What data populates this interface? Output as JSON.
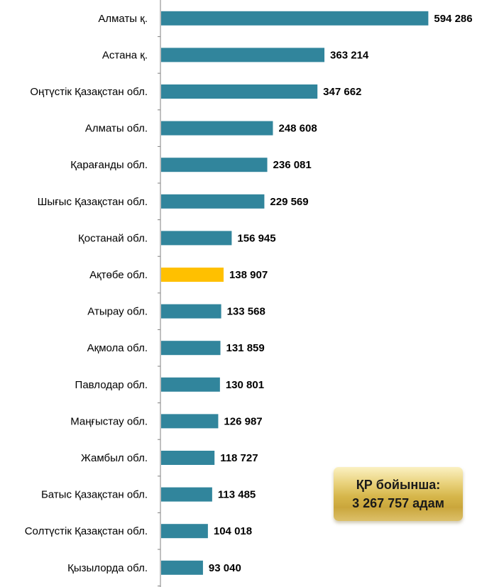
{
  "chart_data": {
    "type": "bar",
    "orientation": "horizontal",
    "categories": [
      "Алматы қ.",
      "Астана қ.",
      "Оңтүстік Қазақстан обл.",
      "Алматы обл.",
      "Қарағанды обл.",
      "Шығыс Қазақстан обл.",
      "Қостанай обл.",
      "Ақтөбе обл.",
      "Атырау обл.",
      "Ақмола обл.",
      "Павлодар обл.",
      "Маңғыстау обл.",
      "Жамбыл обл.",
      "Батыс Қазақстан обл.",
      "Солтүстік Қазақстан обл.",
      "Қызылорда обл."
    ],
    "values": [
      594286,
      363214,
      347662,
      248608,
      236081,
      229569,
      156945,
      138907,
      133568,
      131859,
      130801,
      126987,
      118727,
      113485,
      104018,
      93040
    ],
    "value_labels": [
      "594 286",
      "363 214",
      "347 662",
      "248 608",
      "236 081",
      "229 569",
      "156 945",
      "138 907",
      "133 568",
      "131 859",
      "130 801",
      "126 987",
      "118 727",
      "113 485",
      "104 018",
      "93 040"
    ],
    "highlight_category": "Ақтөбе обл.",
    "colors": {
      "bar": "#31859c",
      "highlight": "#ffc000",
      "axis": "#808080"
    },
    "xlim": [
      0,
      600000
    ],
    "grid": false,
    "title": "",
    "xlabel": "",
    "ylabel": ""
  },
  "total_box": {
    "line1": "ҚР бойынша:",
    "line2": "3 267 757 адам"
  }
}
